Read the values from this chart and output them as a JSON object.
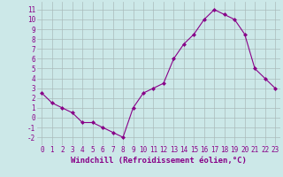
{
  "hours": [
    0,
    1,
    2,
    3,
    4,
    5,
    6,
    7,
    8,
    9,
    10,
    11,
    12,
    13,
    14,
    15,
    16,
    17,
    18,
    19,
    20,
    21,
    22,
    23
  ],
  "values": [
    2.5,
    1.5,
    1.0,
    0.5,
    -0.5,
    -0.5,
    -1.0,
    -1.5,
    -2.0,
    1.0,
    2.5,
    3.0,
    3.5,
    6.0,
    7.5,
    8.5,
    10.0,
    11.0,
    10.5,
    10.0,
    8.5,
    5.0,
    4.0,
    3.0
  ],
  "line_color": "#880088",
  "marker": "D",
  "marker_size": 2,
  "bg_color": "#cce8e8",
  "grid_color": "#aabbbb",
  "xlabel": "Windchill (Refroidissement éolien,°C)",
  "ylim": [
    -2.8,
    11.8
  ],
  "xlim": [
    -0.5,
    23.5
  ],
  "yticks": [
    -2,
    -1,
    0,
    1,
    2,
    3,
    4,
    5,
    6,
    7,
    8,
    9,
    10,
    11
  ],
  "xticks": [
    0,
    1,
    2,
    3,
    4,
    5,
    6,
    7,
    8,
    9,
    10,
    11,
    12,
    13,
    14,
    15,
    16,
    17,
    18,
    19,
    20,
    21,
    22,
    23
  ],
  "label_color": "#880088",
  "tick_fontsize": 5.5,
  "xlabel_fontsize": 6.5
}
